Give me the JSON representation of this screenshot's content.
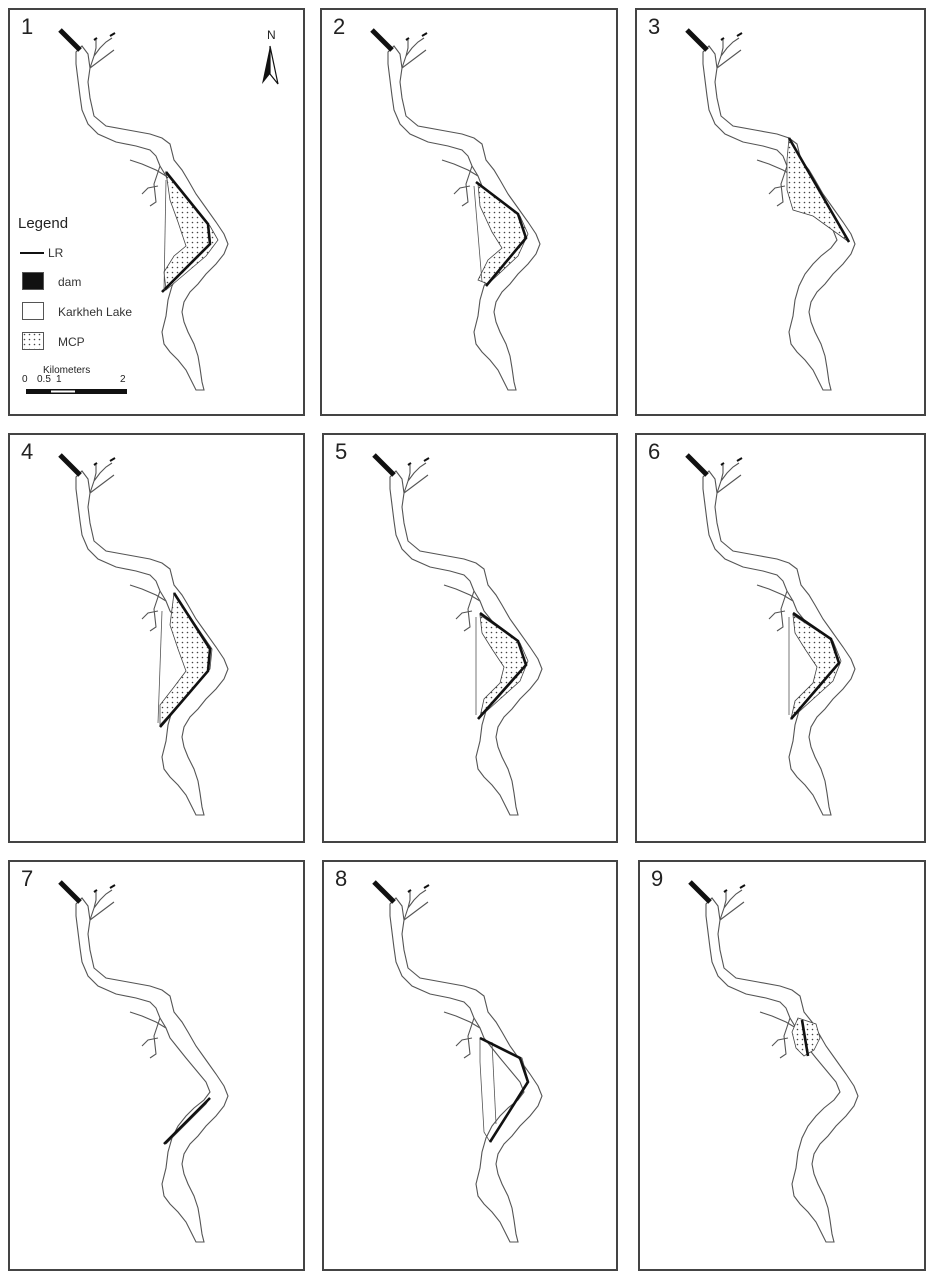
{
  "panels": [
    {
      "number": "1",
      "variant": "both"
    },
    {
      "number": "2",
      "variant": "both_small"
    },
    {
      "number": "3",
      "variant": "triangle"
    },
    {
      "number": "4",
      "variant": "both"
    },
    {
      "number": "5",
      "variant": "both_small"
    },
    {
      "number": "6",
      "variant": "both_small"
    },
    {
      "number": "7",
      "variant": "lower_line"
    },
    {
      "number": "8",
      "variant": "both_outline"
    },
    {
      "number": "9",
      "variant": "small_north"
    }
  ],
  "legend": {
    "title": "Legend",
    "items": [
      {
        "label": "LR",
        "symbol": "line"
      },
      {
        "label": "dam",
        "symbol": "black-box"
      },
      {
        "label": "Karkheh Lake",
        "symbol": "white-box"
      },
      {
        "label": "MCP",
        "symbol": "dotted-box"
      }
    ]
  },
  "north_arrow": {
    "label": "N"
  },
  "scale_bar": {
    "title": "Kilometers",
    "ticks": [
      "0",
      "0.5",
      "1",
      "2"
    ]
  },
  "colors": {
    "line": "#111111",
    "outline": "#555555",
    "dam": "#111111",
    "dots": "#444444"
  }
}
